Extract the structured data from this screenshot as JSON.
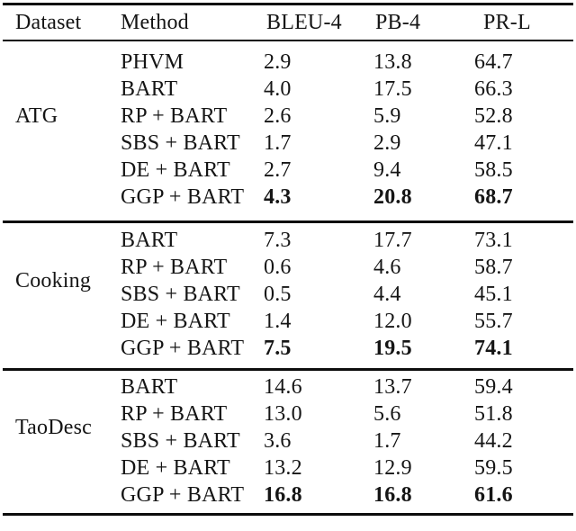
{
  "page": {
    "background_color": "#ffffff",
    "text_color": "#151515",
    "rule_color": "#0d0d0d"
  },
  "table": {
    "headers": {
      "dataset": "Dataset",
      "method": "Method",
      "bleu4": "BLEU-4",
      "pb4": "PB-4",
      "prl": "PR-L"
    },
    "sections": [
      {
        "dataset": "ATG",
        "rows": [
          {
            "method": "PHVM",
            "bleu4": "2.9",
            "pb4": "13.8",
            "prl": "64.7",
            "best": false
          },
          {
            "method": "BART",
            "bleu4": "4.0",
            "pb4": "17.5",
            "prl": "66.3",
            "best": false
          },
          {
            "method": "RP + BART",
            "bleu4": "2.6",
            "pb4": "5.9",
            "prl": "52.8",
            "best": false
          },
          {
            "method": "SBS + BART",
            "bleu4": "1.7",
            "pb4": "2.9",
            "prl": "47.1",
            "best": false
          },
          {
            "method": "DE + BART",
            "bleu4": "2.7",
            "pb4": "9.4",
            "prl": "58.5",
            "best": false
          },
          {
            "method": "GGP + BART",
            "bleu4": "4.3",
            "pb4": "20.8",
            "prl": "68.7",
            "best": true
          }
        ]
      },
      {
        "dataset": "Cooking",
        "rows": [
          {
            "method": "BART",
            "bleu4": "7.3",
            "pb4": "17.7",
            "prl": "73.1",
            "best": false
          },
          {
            "method": "RP + BART",
            "bleu4": "0.6",
            "pb4": "4.6",
            "prl": "58.7",
            "best": false
          },
          {
            "method": "SBS + BART",
            "bleu4": "0.5",
            "pb4": "4.4",
            "prl": "45.1",
            "best": false
          },
          {
            "method": "DE + BART",
            "bleu4": "1.4",
            "pb4": "12.0",
            "prl": "55.7",
            "best": false
          },
          {
            "method": "GGP + BART",
            "bleu4": "7.5",
            "pb4": "19.5",
            "prl": "74.1",
            "best": true
          }
        ]
      },
      {
        "dataset": "TaoDesc",
        "rows": [
          {
            "method": "BART",
            "bleu4": "14.6",
            "pb4": "13.7",
            "prl": "59.4",
            "best": false
          },
          {
            "method": "RP + BART",
            "bleu4": "13.0",
            "pb4": "5.6",
            "prl": "51.8",
            "best": false
          },
          {
            "method": "SBS + BART",
            "bleu4": "3.6",
            "pb4": "1.7",
            "prl": "44.2",
            "best": false
          },
          {
            "method": "DE + BART",
            "bleu4": "13.2",
            "pb4": "12.9",
            "prl": "59.5",
            "best": false
          },
          {
            "method": "GGP + BART",
            "bleu4": "16.8",
            "pb4": "16.8",
            "prl": "61.6",
            "best": true
          }
        ]
      }
    ]
  }
}
